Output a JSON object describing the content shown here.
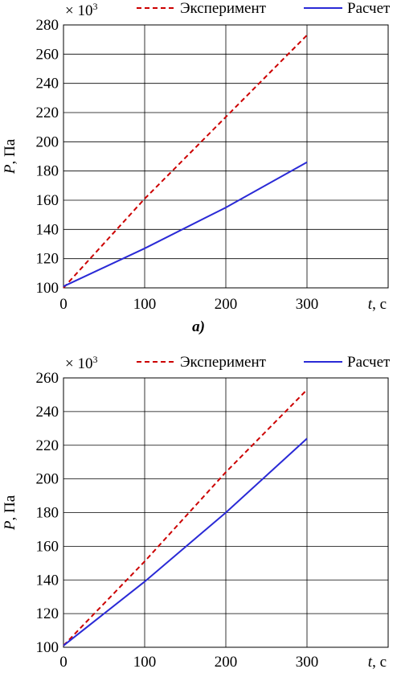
{
  "charts": [
    {
      "multiplier": "× 10",
      "multiplier_exp": "3",
      "caption": "a)",
      "chart_data": {
        "type": "line",
        "xlabel_var": "t",
        "xlabel_unit": ", с",
        "ylabel_var": "P",
        "ylabel_unit": ", Па",
        "xlim": [
          0,
          300
        ],
        "ylim": [
          100,
          280
        ],
        "xticks": [
          0,
          100,
          200,
          300
        ],
        "yticks": [
          100,
          120,
          140,
          160,
          180,
          200,
          220,
          240,
          260,
          280
        ],
        "grid": true,
        "legend_position": "top",
        "series": [
          {
            "name": "Эксперимент",
            "style": "dashed",
            "color": "#cc0000",
            "x": [
              0,
              100,
              200,
              300
            ],
            "y": [
              100,
              161,
              217,
              273
            ]
          },
          {
            "name": "Расчет",
            "style": "solid",
            "color": "#2a2ad6",
            "x": [
              0,
              100,
              200,
              300
            ],
            "y": [
              101,
              127,
              155,
              186
            ]
          }
        ]
      }
    },
    {
      "multiplier": "× 10",
      "multiplier_exp": "3",
      "caption": "",
      "chart_data": {
        "type": "line",
        "xlabel_var": "t",
        "xlabel_unit": ", с",
        "ylabel_var": "P",
        "ylabel_unit": ", Па",
        "xlim": [
          0,
          300
        ],
        "ylim": [
          100,
          260
        ],
        "xticks": [
          0,
          100,
          200,
          300
        ],
        "yticks": [
          100,
          120,
          140,
          160,
          180,
          200,
          220,
          240,
          260
        ],
        "grid": true,
        "legend_position": "top",
        "series": [
          {
            "name": "Эксперимент",
            "style": "dashed",
            "color": "#cc0000",
            "x": [
              0,
              100,
              200,
              300
            ],
            "y": [
              101,
              151,
              204,
              253
            ]
          },
          {
            "name": "Расчет",
            "style": "solid",
            "color": "#2a2ad6",
            "x": [
              0,
              100,
              200,
              300
            ],
            "y": [
              101,
              139,
              180,
              224
            ]
          }
        ]
      }
    }
  ]
}
